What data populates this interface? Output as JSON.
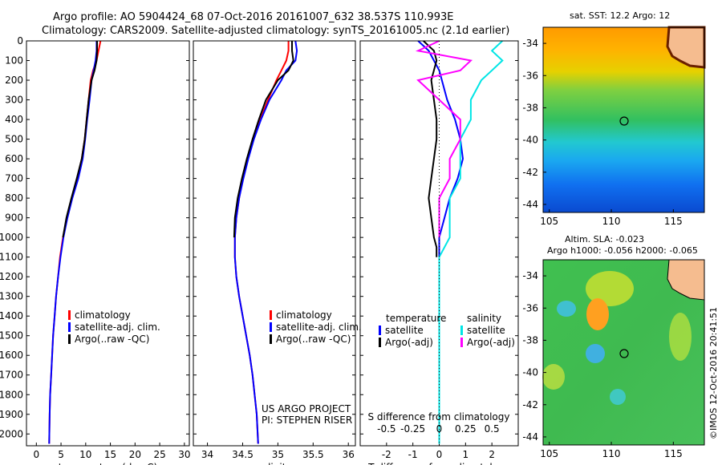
{
  "header": {
    "line1": "Argo profile: AO 5904424_68 07-Oct-2016 20161007_632 38.537S 110.993E",
    "line2": "Climatology: CARS2009. Satellite-adjusted climatology: synTS_20161005.nc (2.1d earlier)"
  },
  "colors": {
    "climatology": "#ff0000",
    "satellite": "#0000ff",
    "argo": "#000000",
    "sal_satellite": "#00e5e5",
    "sal_argo": "#ff00ff"
  },
  "chart_data": [
    {
      "type": "line",
      "xlabel": "temperature (deg C)",
      "xlim": [
        -2,
        31
      ],
      "xticks": [
        0,
        5,
        10,
        15,
        20,
        25,
        30
      ],
      "ylim": [
        0,
        2060
      ],
      "yticks": [
        0,
        100,
        200,
        300,
        400,
        500,
        600,
        700,
        800,
        900,
        1000,
        1100,
        1200,
        1300,
        1400,
        1500,
        1600,
        1700,
        1800,
        1900,
        2000
      ],
      "legend": [
        "climatology",
        "satellite-adj. clim.",
        "Argo(..raw -QC)"
      ],
      "series": [
        {
          "name": "climatology",
          "x": [
            13.0,
            12.6,
            12.2,
            11.5,
            11.0,
            10.6,
            10.2,
            9.8,
            9.2,
            8.3,
            7.2,
            6.2,
            5.4,
            4.8,
            4.4,
            4.0,
            3.7,
            3.4,
            3.2,
            3.0,
            2.8,
            2.7,
            2.6
          ],
          "y": [
            0,
            50,
            100,
            150,
            200,
            300,
            400,
            500,
            600,
            700,
            800,
            900,
            1000,
            1100,
            1200,
            1300,
            1400,
            1500,
            1600,
            1700,
            1800,
            1900,
            2050
          ]
        },
        {
          "name": "satellite-adj. clim.",
          "x": [
            12.2,
            12.2,
            12.0,
            11.6,
            11.2,
            10.8,
            10.3,
            9.9,
            9.4,
            8.5,
            7.3,
            6.3,
            5.5,
            4.9,
            4.4,
            4.0,
            3.7,
            3.4,
            3.2,
            3.0,
            2.8,
            2.7,
            2.6
          ],
          "y": [
            0,
            50,
            100,
            150,
            200,
            300,
            400,
            500,
            600,
            700,
            800,
            900,
            1000,
            1100,
            1200,
            1300,
            1400,
            1500,
            1600,
            1700,
            1800,
            1900,
            2050
          ]
        },
        {
          "name": "Argo(..raw -QC)",
          "x": [
            12.3,
            12.3,
            12.2,
            11.8,
            11.2,
            10.6,
            10.2,
            9.8,
            9.2,
            8.2,
            7.1,
            6.1,
            5.4
          ],
          "y": [
            0,
            50,
            100,
            150,
            200,
            300,
            400,
            500,
            600,
            700,
            800,
            900,
            1000
          ]
        }
      ]
    },
    {
      "type": "line",
      "xlabel": "salinity",
      "xlim": [
        33.8,
        36.1
      ],
      "xticks": [
        34,
        34.5,
        35,
        35.5,
        36
      ],
      "ylim": [
        0,
        2060
      ],
      "legend": [
        "climatology",
        "satellite-adj. clim.",
        "Argo(..raw -QC)"
      ],
      "annotations": [
        "US ARGO PROJECT",
        "PI: STEPHEN RISER"
      ],
      "series": [
        {
          "name": "climatology",
          "x": [
            35.15,
            35.15,
            35.12,
            35.05,
            34.98,
            34.86,
            34.75,
            34.65,
            34.57,
            34.5,
            34.45,
            34.41,
            34.39,
            34.39,
            34.41,
            34.45,
            34.5,
            34.55,
            34.6,
            34.64,
            34.67,
            34.7,
            34.72
          ],
          "y": [
            0,
            50,
            100,
            150,
            200,
            300,
            400,
            500,
            600,
            700,
            800,
            900,
            1000,
            1100,
            1200,
            1300,
            1400,
            1500,
            1600,
            1700,
            1800,
            1900,
            2050
          ]
        },
        {
          "name": "satellite-adj. clim.",
          "x": [
            35.25,
            35.27,
            35.25,
            35.12,
            35.05,
            34.88,
            34.76,
            34.66,
            34.58,
            34.51,
            34.45,
            34.41,
            34.39,
            34.39,
            34.41,
            34.45,
            34.5,
            34.55,
            34.6,
            34.64,
            34.67,
            34.7,
            34.72
          ],
          "y": [
            0,
            50,
            100,
            150,
            200,
            300,
            400,
            500,
            600,
            700,
            800,
            900,
            1000,
            1100,
            1200,
            1300,
            1400,
            1500,
            1600,
            1700,
            1800,
            1900,
            2050
          ]
        },
        {
          "name": "Argo(..raw -QC)",
          "x": [
            35.2,
            35.2,
            35.22,
            35.15,
            35.0,
            34.83,
            34.73,
            34.64,
            34.56,
            34.49,
            34.43,
            34.39,
            34.38
          ],
          "y": [
            0,
            50,
            100,
            150,
            200,
            300,
            400,
            500,
            600,
            700,
            800,
            900,
            1000
          ]
        }
      ]
    },
    {
      "type": "line",
      "xlabel": "T difference from climatology",
      "top_label": "S difference from climatology",
      "xlim": [
        -3,
        3
      ],
      "xticks": [
        -2,
        -1,
        0,
        1,
        2
      ],
      "top_ticks": [
        "-0.5",
        "-0.25",
        "0",
        "0.25",
        "0.5"
      ],
      "ylim": [
        0,
        2060
      ],
      "legend_groups": [
        {
          "title": "temperature",
          "entries": [
            "satellite",
            "Argo(-adj)"
          ]
        },
        {
          "title": "salinity",
          "entries": [
            "satellite",
            "Argo(-adj)"
          ]
        }
      ],
      "series": [
        {
          "name": "T satellite",
          "x": [
            -0.8,
            -0.4,
            -0.2,
            0.0,
            0.1,
            0.3,
            0.6,
            0.8,
            0.9,
            0.7,
            0.4,
            0.2,
            0.0,
            0.0,
            0.0,
            0.0,
            0.0,
            0.0
          ],
          "y": [
            0,
            50,
            100,
            150,
            200,
            300,
            400,
            500,
            600,
            700,
            800,
            900,
            1000,
            1100,
            1200,
            1500,
            1800,
            2050
          ]
        },
        {
          "name": "T Argo(-adj)",
          "x": [
            -0.6,
            -0.2,
            -0.1,
            -0.2,
            -0.3,
            -0.2,
            -0.1,
            -0.1,
            -0.2,
            -0.3,
            -0.4,
            -0.3,
            -0.2,
            -0.1,
            -0.1
          ],
          "y": [
            0,
            50,
            100,
            150,
            200,
            300,
            400,
            500,
            600,
            700,
            800,
            900,
            1000,
            1050,
            1100
          ]
        },
        {
          "name": "S satellite",
          "x": [
            0.6,
            0.5,
            0.6,
            0.5,
            0.4,
            0.3,
            0.3,
            0.2,
            0.2,
            0.2,
            0.1,
            0.1,
            0.1,
            0.0,
            0.0,
            0.0
          ],
          "y": [
            0,
            50,
            100,
            150,
            200,
            300,
            400,
            500,
            600,
            700,
            800,
            900,
            1000,
            1100,
            1500,
            2050
          ]
        },
        {
          "name": "S Argo(-adj)",
          "x": [
            0.0,
            -0.2,
            0.3,
            0.2,
            -0.2,
            0.0,
            0.2,
            0.2,
            0.1,
            0.1,
            0.0,
            0.0,
            0.0
          ],
          "y": [
            0,
            50,
            100,
            150,
            200,
            300,
            400,
            500,
            600,
            700,
            800,
            900,
            1000
          ]
        }
      ]
    },
    {
      "type": "heatmap",
      "title": "sat. SST: 12.2 Argo: 12",
      "xlim": [
        104.5,
        117.5
      ],
      "ylim": [
        -44.5,
        -33
      ],
      "xticks": [
        105,
        110,
        115
      ],
      "yticks": [
        -34,
        -36,
        -38,
        -40,
        -42,
        -44
      ],
      "marker": {
        "lon": 110.993,
        "lat": -38.537
      }
    },
    {
      "type": "heatmap",
      "title": "Altim. SLA: -0.023",
      "subtitle": "Argo h1000: -0.056 h2000: -0.065",
      "xlim": [
        104.5,
        117.5
      ],
      "ylim": [
        -44.5,
        -33
      ],
      "xticks": [
        105,
        110,
        115
      ],
      "yticks": [
        -34,
        -36,
        -38,
        -40,
        -42,
        -44
      ],
      "marker": {
        "lon": 110.993,
        "lat": -38.537
      },
      "watermark": "©IMOS 12-Oct-2016 20:41:51"
    }
  ]
}
